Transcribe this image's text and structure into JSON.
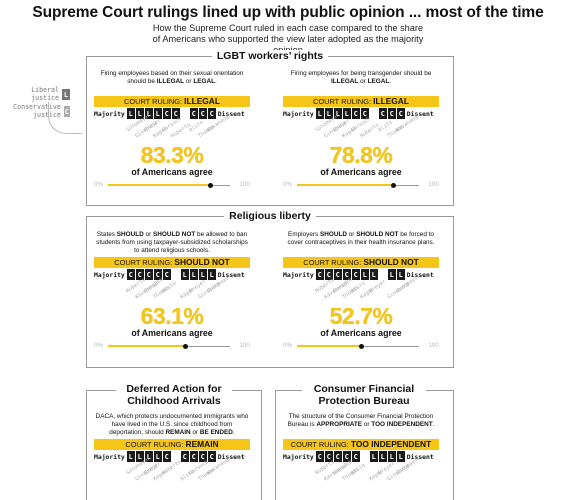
{
  "title": "Supreme Court rulings lined up with public opinion ... most of the time",
  "subtitle": "How the Supreme Court ruled in each case compared to the share of Americans who supported the view later adopted as the majority opinion",
  "legend": {
    "liberal_label": "Liberal justice",
    "liberal_box": "L",
    "conservative_label": "Conservative justice",
    "conservative_box": "C"
  },
  "labels": {
    "majority": "Majority",
    "dissent": "Dissent",
    "court_ruling": "COURT RULING:",
    "agree": "of Americans agree",
    "scale_min": "0%",
    "scale_max": "100"
  },
  "colors": {
    "accent": "#f5c518",
    "vote_box": "#1a1a1a",
    "legend_liberal": "#777777",
    "legend_conservative": "#aaaaaa"
  },
  "sections": [
    {
      "title": "LGBT workers’ rights",
      "panels": [
        {
          "question": "Firing employees based on their sexual orientation should be ILLEGAL or LEGAL.",
          "ruling": "ILLEGAL",
          "majority_votes": [
            "L",
            "L",
            "L",
            "L",
            "C",
            "C"
          ],
          "dissent_votes": [
            "C",
            "C",
            "C"
          ],
          "justice_names": [
            "Sotomayor",
            "Ginsburg",
            "Breyer",
            "Kagan",
            "Gorsuch",
            "Roberts",
            "Alito",
            "Thomas",
            "Kavanaugh"
          ],
          "percent_label": "83.3%",
          "percent_value": 83.3
        },
        {
          "question": "Firing employees for being transgender should be ILLEGAL or LEGAL.",
          "ruling": "ILLEGAL",
          "majority_votes": [
            "L",
            "L",
            "L",
            "L",
            "C",
            "C"
          ],
          "dissent_votes": [
            "C",
            "C",
            "C"
          ],
          "justice_names": [
            "Sotomayor",
            "Ginsburg",
            "Breyer",
            "Kagan",
            "Gorsuch",
            "Roberts",
            "Alito",
            "Thomas",
            "Kavanaugh"
          ],
          "percent_label": "78.8%",
          "percent_value": 78.8
        }
      ]
    },
    {
      "title": "Religious liberty",
      "panels": [
        {
          "question": "States SHOULD or SHOULD NOT be allowed to ban students from using taxpayer-subsidized scholarships to attend religious schools.",
          "ruling": "SHOULD NOT",
          "majority_votes": [
            "C",
            "C",
            "C",
            "C",
            "C"
          ],
          "dissent_votes": [
            "L",
            "L",
            "L",
            "L"
          ],
          "justice_names": [
            "Roberts",
            "Kavanaugh",
            "Gorsuch",
            "Thomas",
            "Alito",
            "Kagan",
            "Breyer",
            "Ginsburg",
            "Sotomayor"
          ],
          "percent_label": "63.1%",
          "percent_value": 63.1
        },
        {
          "question": "Employers SHOULD or SHOULD NOT be forced to cover contraceptives in their health insurance plans.",
          "ruling": "SHOULD NOT",
          "majority_votes": [
            "C",
            "C",
            "C",
            "C",
            "C",
            "L",
            "L"
          ],
          "dissent_votes": [
            "L",
            "L"
          ],
          "justice_names": [
            "Roberts",
            "Kavanaugh",
            "Gorsuch",
            "Thomas",
            "Alito",
            "Kagan",
            "Breyer",
            "Ginsburg",
            "Sotomayor"
          ],
          "percent_label": "52.7%",
          "percent_value": 52.7
        }
      ]
    },
    {
      "title": "Deferred Action for Childhood Arrivals",
      "panels": [
        {
          "question": "DACA, which protects undocumented immigrants who have lived in the U.S. since childhood from deportation, should REMAIN or BE ENDED.",
          "ruling": "REMAIN",
          "majority_votes": [
            "L",
            "L",
            "L",
            "L",
            "C"
          ],
          "dissent_votes": [
            "C",
            "C",
            "C",
            "C"
          ],
          "justice_names": [
            "Sotomayor",
            "Ginsburg",
            "Breyer",
            "Kagan",
            "Roberts",
            "Alito",
            "Gorsuch",
            "Thomas",
            "Kavanaugh"
          ]
        }
      ]
    },
    {
      "title": "Consumer Financial Protection Bureau",
      "panels": [
        {
          "question": "The structure of the Consumer Financial Protection Bureau is APPROPRIATE or TOO INDEPENDENT.",
          "ruling": "TOO INDEPENDENT",
          "majority_votes": [
            "C",
            "C",
            "C",
            "C",
            "C"
          ],
          "dissent_votes": [
            "L",
            "L",
            "L",
            "L"
          ],
          "justice_names": [
            "Roberts",
            "Kavanaugh",
            "Gorsuch",
            "Thomas",
            "Alito",
            "Kagan",
            "Breyer",
            "Ginsburg",
            "Sotomayor"
          ]
        }
      ]
    }
  ],
  "chart_data": [
    {
      "type": "table",
      "title": "LGBT workers’ rights",
      "rows": [
        {
          "question": "Firing employees based on their sexual orientation should be ILLEGAL or LEGAL.",
          "ruling": "ILLEGAL",
          "majority": 6,
          "dissent": 3,
          "percent_agree": 83.3
        },
        {
          "question": "Firing employees for being transgender should be ILLEGAL or LEGAL.",
          "ruling": "ILLEGAL",
          "majority": 6,
          "dissent": 3,
          "percent_agree": 78.8
        }
      ]
    },
    {
      "type": "table",
      "title": "Religious liberty",
      "rows": [
        {
          "question": "States SHOULD or SHOULD NOT be allowed to ban students from using taxpayer-subsidized scholarships to attend religious schools.",
          "ruling": "SHOULD NOT",
          "majority": 5,
          "dissent": 4,
          "percent_agree": 63.1
        },
        {
          "question": "Employers SHOULD or SHOULD NOT be forced to cover contraceptives in their health insurance plans.",
          "ruling": "SHOULD NOT",
          "majority": 7,
          "dissent": 2,
          "percent_agree": 52.7
        }
      ]
    },
    {
      "type": "table",
      "title": "Deferred Action for Childhood Arrivals",
      "rows": [
        {
          "ruling": "REMAIN",
          "majority": 5,
          "dissent": 4
        }
      ]
    },
    {
      "type": "table",
      "title": "Consumer Financial Protection Bureau",
      "rows": [
        {
          "ruling": "TOO INDEPENDENT",
          "majority": 5,
          "dissent": 4
        }
      ]
    }
  ]
}
